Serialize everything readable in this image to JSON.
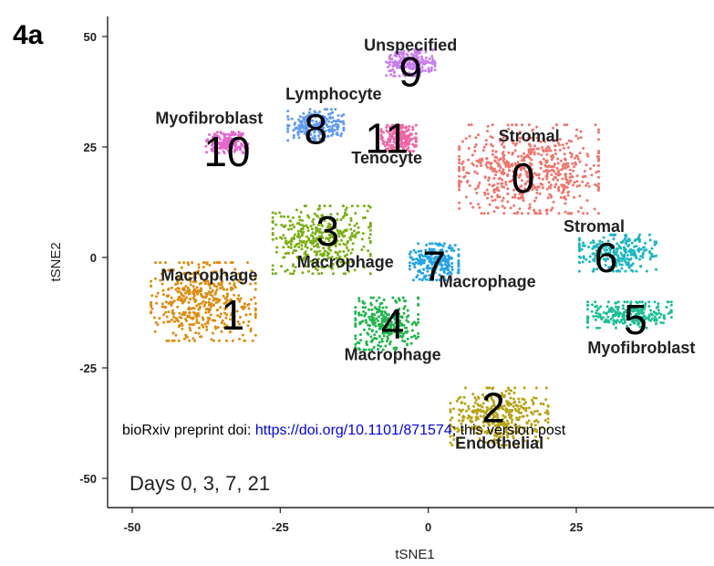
{
  "panel_label": "4a",
  "note": "Days 0, 3, 7, 21",
  "watermark": {
    "prefix": "bioRxiv preprint doi: ",
    "link": "https://doi.org/10.1101/871574",
    "suffix": "; this version post"
  },
  "chart_data": {
    "type": "scatter",
    "title": "",
    "xlabel": "tSNE1",
    "ylabel": "tSNE2",
    "xlim": [
      -55,
      45
    ],
    "ylim": [
      -55,
      55
    ],
    "xticks": [
      -50,
      -25,
      0,
      25
    ],
    "yticks": [
      50,
      25,
      0,
      -25,
      -50
    ],
    "grid": false,
    "clusters": [
      {
        "id": "0",
        "label": "Stromal",
        "color": "#f1756d",
        "center": [
          17,
          20
        ],
        "spread": [
          10,
          8.5
        ],
        "label_x": 17,
        "label_y": 27.5,
        "number_x": 16,
        "number_y": 18
      },
      {
        "id": "1",
        "label": "Macrophage",
        "color": "#de8c0e",
        "center": [
          -38,
          -10
        ],
        "spread": [
          7.5,
          7.5
        ],
        "label_x": -37,
        "label_y": -4,
        "number_x": -33,
        "number_y": -13
      },
      {
        "id": "2",
        "label": "Endothelial",
        "color": "#b8a315",
        "center": [
          12,
          -36
        ],
        "spread": [
          7,
          5.5
        ],
        "label_x": 12,
        "label_y": -42,
        "number_x": 11,
        "number_y": -34
      },
      {
        "id": "3",
        "label": "Macrophage",
        "color": "#7cb013",
        "center": [
          -18,
          4
        ],
        "spread": [
          7,
          6.5
        ],
        "label_x": -14,
        "label_y": -1,
        "number_x": -17,
        "number_y": 6
      },
      {
        "id": "4",
        "label": "Macrophage",
        "color": "#1fb64a",
        "center": [
          -7,
          -15
        ],
        "spread": [
          4.5,
          5
        ],
        "label_x": -6,
        "label_y": -22,
        "number_x": -6,
        "number_y": -15
      },
      {
        "id": "5",
        "label": "Myofibroblast",
        "color": "#1cbf96",
        "center": [
          34,
          -13
        ],
        "spread": [
          6,
          2.5
        ],
        "label_x": 36,
        "label_y": -20.5,
        "number_x": 35,
        "number_y": -14
      },
      {
        "id": "6",
        "label": "Stromal",
        "color": "#1bb8c1",
        "center": [
          32,
          1
        ],
        "spread": [
          5.5,
          3.5
        ],
        "label_x": 28,
        "label_y": 7,
        "number_x": 30,
        "number_y": 0
      },
      {
        "id": "7",
        "label": "Macrophage",
        "color": "#23a4e6",
        "center": [
          1,
          -1
        ],
        "spread": [
          3.5,
          3.5
        ],
        "label_x": 10,
        "label_y": -5.5,
        "number_x": 1,
        "number_y": -2
      },
      {
        "id": "8",
        "label": "Lymphocyte",
        "color": "#629af5",
        "center": [
          -19,
          30
        ],
        "spread": [
          4,
          3
        ],
        "label_x": -16,
        "label_y": 37,
        "number_x": -19,
        "number_y": 29
      },
      {
        "id": "9",
        "label": "Unspecified",
        "color": "#c87ef0",
        "center": [
          -3,
          44
        ],
        "spread": [
          3.5,
          2.5
        ],
        "label_x": -3,
        "label_y": 48,
        "number_x": -3,
        "number_y": 42
      },
      {
        "id": "10",
        "label": "Myofibroblast",
        "color": "#e566cf",
        "center": [
          -34,
          26
        ],
        "spread": [
          3,
          2
        ],
        "label_x": -37,
        "label_y": 31.5,
        "number_x": -34,
        "number_y": 24
      },
      {
        "id": "11",
        "label": "Tenocyte",
        "color": "#f165a6",
        "center": [
          -5,
          27
        ],
        "spread": [
          2.5,
          2.5
        ],
        "label_x": -7,
        "label_y": 22.5,
        "number_x": -7,
        "number_y": 27
      }
    ]
  }
}
